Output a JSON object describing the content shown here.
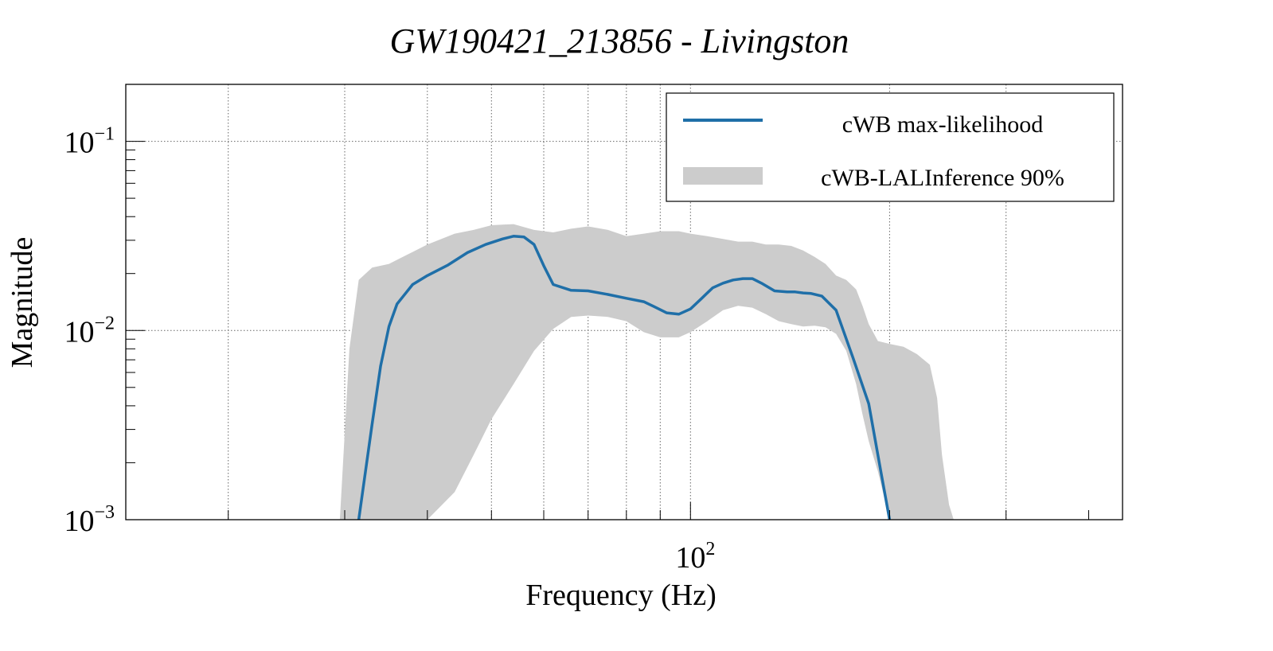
{
  "chart_data": {
    "type": "line",
    "title": "GW190421_213856 - Livingston",
    "xlabel": "Frequency (Hz)",
    "ylabel": "Magnitude",
    "xscale": "log",
    "yscale": "log",
    "xlim": [
      14,
      450
    ],
    "ylim": [
      0.001,
      0.2
    ],
    "x_tick_labels": [
      {
        "value": 100,
        "base": "10",
        "exp": "2"
      }
    ],
    "y_tick_labels": [
      {
        "value": 0.001,
        "base": "10",
        "exp": "−3"
      },
      {
        "value": 0.01,
        "base": "10",
        "exp": "−2"
      },
      {
        "value": 0.1,
        "base": "10",
        "exp": "−1"
      }
    ],
    "x_gridlines": [
      20,
      30,
      40,
      50,
      60,
      70,
      80,
      90,
      100,
      200,
      300
    ],
    "y_gridlines": [
      0.01,
      0.1
    ],
    "grid": true,
    "legend_position": "top-right",
    "legend": [
      {
        "label": "cWB max-likelihood",
        "kind": "line",
        "color": "#1f6fa8"
      },
      {
        "label": "cWB-LALInference 90%",
        "kind": "band",
        "color": "#cccccc"
      }
    ],
    "series": [
      {
        "name": "cWB max-likelihood",
        "color": "#1f6fa8",
        "x": [
          31.5,
          33,
          34,
          35,
          36,
          38,
          40,
          43,
          46,
          49,
          52,
          54,
          56,
          58,
          60,
          62,
          66,
          70,
          75,
          80,
          85,
          88,
          92,
          96,
          100,
          104,
          108,
          112,
          116,
          120,
          124,
          128,
          134,
          140,
          144,
          148,
          152,
          158,
          166,
          176,
          186,
          194,
          200
        ],
        "values": [
          0.001,
          0.0032,
          0.0065,
          0.0105,
          0.0138,
          0.0175,
          0.0195,
          0.0222,
          0.0258,
          0.0285,
          0.0305,
          0.0315,
          0.0312,
          0.0285,
          0.022,
          0.0175,
          0.0163,
          0.0162,
          0.0155,
          0.0148,
          0.0142,
          0.0134,
          0.0124,
          0.0122,
          0.013,
          0.0148,
          0.0168,
          0.0178,
          0.0185,
          0.0188,
          0.0188,
          0.0178,
          0.0162,
          0.016,
          0.016,
          0.0158,
          0.0157,
          0.0152,
          0.0128,
          0.0072,
          0.0041,
          0.0018,
          0.001
        ]
      }
    ],
    "band": {
      "name": "cWB-LALInference 90%",
      "color": "#cccccc",
      "x": [
        29.5,
        30.5,
        31.5,
        33,
        35,
        38,
        40,
        44,
        47,
        50,
        54,
        58,
        62,
        66,
        70,
        75,
        80,
        85,
        90,
        96,
        100,
        106,
        112,
        118,
        124,
        130,
        136,
        142,
        148,
        154,
        160,
        166,
        172,
        178,
        182,
        186,
        192,
        200,
        210,
        220,
        230,
        236,
        240,
        246,
        250
      ],
      "upper": [
        0.001,
        0.008,
        0.0185,
        0.0215,
        0.0225,
        0.026,
        0.0285,
        0.0325,
        0.034,
        0.036,
        0.0365,
        0.034,
        0.033,
        0.0345,
        0.0355,
        0.034,
        0.0315,
        0.0325,
        0.0335,
        0.0335,
        0.0325,
        0.0315,
        0.0305,
        0.0295,
        0.0295,
        0.0285,
        0.0285,
        0.028,
        0.0265,
        0.0245,
        0.0225,
        0.0195,
        0.0185,
        0.0165,
        0.0135,
        0.0108,
        0.0088,
        0.0085,
        0.0082,
        0.0075,
        0.0066,
        0.0044,
        0.0022,
        0.0012,
        0.001
      ],
      "lower": [
        0.001,
        0.001,
        0.001,
        0.001,
        0.001,
        0.001,
        0.001,
        0.0014,
        0.0022,
        0.0034,
        0.0052,
        0.0078,
        0.0102,
        0.0118,
        0.012,
        0.0118,
        0.0112,
        0.0098,
        0.0092,
        0.0092,
        0.0098,
        0.0112,
        0.0128,
        0.0135,
        0.0132,
        0.0122,
        0.0112,
        0.0108,
        0.0105,
        0.0106,
        0.0104,
        0.0096,
        0.0078,
        0.0052,
        0.0036,
        0.0026,
        0.0018,
        0.001,
        0.001,
        0.001,
        0.001,
        0.001,
        0.001,
        0.001,
        0.001
      ]
    }
  }
}
